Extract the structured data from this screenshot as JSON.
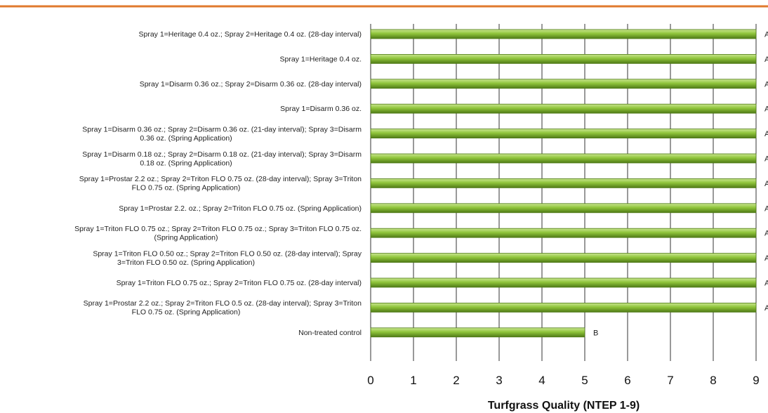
{
  "chart_data": {
    "type": "bar",
    "orientation": "horizontal",
    "categories": [
      [
        "Spray 1=Heritage 0.4 oz.; Spray 2=Heritage 0.4 oz. (28-day interval)"
      ],
      [
        "Spray 1=Heritage 0.4 oz."
      ],
      [
        "Spray 1=Disarm 0.36 oz.; Spray 2=Disarm 0.36 oz. (28-day interval)"
      ],
      [
        "Spray 1=Disarm 0.36 oz."
      ],
      [
        "Spray 1=Disarm 0.36 oz.; Spray 2=Disarm 0.36 oz. (21-day interval); Spray 3=Disarm",
        "0.36 oz. (Spring Application)"
      ],
      [
        "Spray 1=Disarm 0.18 oz.; Spray 2=Disarm 0.18 oz. (21-day interval); Spray 3=Disarm",
        "0.18 oz. (Spring Application)"
      ],
      [
        "Spray 1=Prostar 2.2 oz.; Spray 2=Triton FLO 0.75 oz. (28-day interval); Spray 3=Triton",
        "FLO 0.75 oz. (Spring Application)"
      ],
      [
        "Spray 1=Prostar 2.2. oz.; Spray 2=Triton FLO 0.75 oz. (Spring Application)"
      ],
      [
        "Spray 1=Triton FLO 0.75 oz.; Spray 2=Triton FLO 0.75 oz.; Spray 3=Triton FLO 0.75 oz.",
        "(Spring Application)"
      ],
      [
        "Spray 1=Triton FLO 0.50 oz.; Spray 2=Triton FLO 0.50 oz. (28-day interval); Spray",
        "3=Triton FLO 0.50 oz. (Spring Application)"
      ],
      [
        "Spray 1=Triton FLO 0.75 oz.; Spray 2=Triton FLO 0.75 oz. (28-day interval)"
      ],
      [
        "Spray 1=Prostar 2.2 oz.;  Spray 2=Triton FLO 0.5 oz. (28-day interval); Spray 3=Triton",
        "FLO 0.75 oz. (Spring Application)"
      ],
      [
        "Non-treated control"
      ]
    ],
    "values": [
      9,
      9,
      9,
      9,
      9,
      9,
      9,
      9,
      9,
      9,
      9,
      9,
      5
    ],
    "data_labels": [
      "A",
      "A",
      "A",
      "A",
      "A",
      "A",
      "A",
      "A",
      "A",
      "A",
      "A",
      "A",
      "B"
    ],
    "xlabel": "Turfgrass Quality (NTEP 1-9)",
    "xlim": [
      0,
      9
    ],
    "xticks": [
      "0",
      "1",
      "2",
      "3",
      "4",
      "5",
      "6",
      "7",
      "8",
      "9"
    ],
    "grid": "vertical",
    "colors": {
      "bar_fill": "#8fc43a",
      "bar_light": "#c9e68f",
      "bar_dark": "#4f7a17",
      "header_rule": "#e07a2e",
      "grid": "#333333"
    }
  }
}
